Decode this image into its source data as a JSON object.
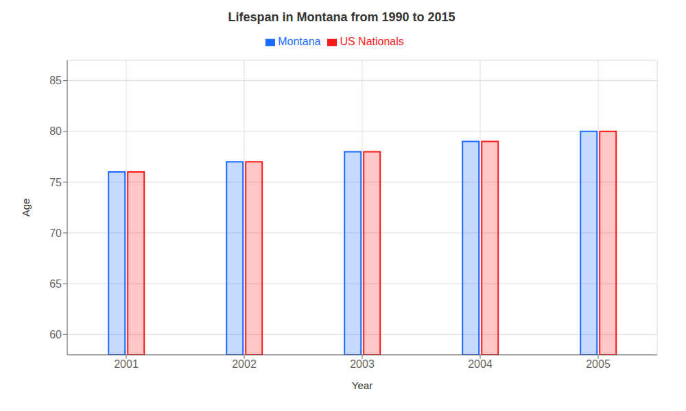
{
  "chart_data": {
    "type": "bar",
    "title": "Lifespan in Montana from 1990 to 2015",
    "x_label": "Year",
    "y_label": "Age",
    "categories": [
      "2001",
      "2002",
      "2003",
      "2004",
      "2005"
    ],
    "series": [
      {
        "name": "Montana",
        "color": "#1a6aff",
        "values": [
          76,
          77,
          78,
          79,
          80
        ]
      },
      {
        "name": "US Nationals",
        "color": "#ff1a1a",
        "values": [
          76,
          77,
          78,
          79,
          80
        ]
      }
    ],
    "ylim": [
      58,
      87
    ],
    "yticks": [
      60,
      65,
      70,
      75,
      80,
      85
    ],
    "grid": true,
    "legend": "top"
  }
}
